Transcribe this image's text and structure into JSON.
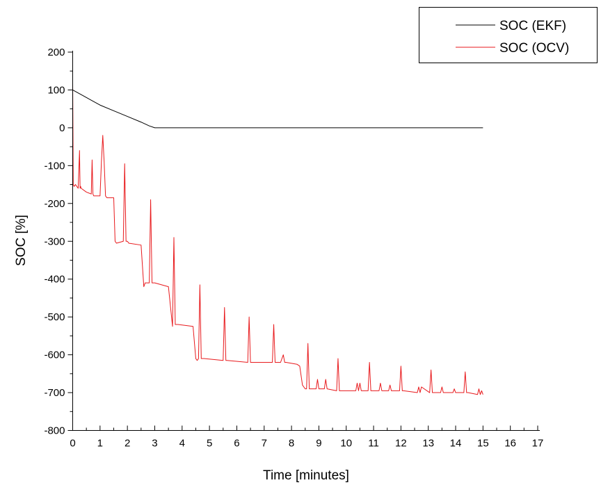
{
  "chart_data": {
    "type": "line",
    "xlabel": "Time [minutes]",
    "ylabel": "SOC [%]",
    "xlim": [
      0,
      17
    ],
    "ylim": [
      -800,
      200
    ],
    "x_ticks": [
      "0",
      "1",
      "2",
      "3",
      "4",
      "5",
      "6",
      "7",
      "8",
      "9",
      "10",
      "11",
      "12",
      "13",
      "14",
      "15",
      "16",
      "17"
    ],
    "y_ticks": [
      "200",
      "100",
      "0",
      "-100",
      "-200",
      "-300",
      "-400",
      "-500",
      "-600",
      "-700",
      "-800"
    ],
    "grid": false,
    "legend_position": "top-right",
    "series": [
      {
        "name": "SOC (EKF)",
        "color": "#000000",
        "x": [
          0,
          0.5,
          1.0,
          1.5,
          2.0,
          2.5,
          2.8,
          3.0,
          3.2,
          5,
          10,
          15
        ],
        "y": [
          100,
          80,
          60,
          45,
          30,
          15,
          5,
          0,
          0,
          0,
          0,
          0
        ]
      },
      {
        "name": "SOC (OCV)",
        "color": "#e8191c",
        "x": [
          0,
          0.02,
          0.05,
          0.1,
          0.2,
          0.25,
          0.27,
          0.29,
          0.31,
          0.5,
          0.68,
          0.71,
          0.74,
          0.77,
          1.0,
          1.05,
          1.1,
          1.15,
          1.2,
          1.25,
          1.5,
          1.55,
          1.6,
          1.85,
          1.9,
          1.95,
          2.0,
          2.05,
          2.5,
          2.6,
          2.65,
          2.8,
          2.85,
          2.9,
          2.95,
          3.0,
          3.5,
          3.65,
          3.7,
          3.75,
          3.8,
          3.85,
          4.4,
          4.5,
          4.55,
          4.6,
          4.65,
          4.7,
          4.75,
          4.8,
          5.5,
          5.55,
          5.6,
          5.65,
          6.4,
          6.45,
          6.5,
          6.55,
          7.3,
          7.35,
          7.4,
          7.45,
          7.6,
          7.7,
          7.75,
          7.8,
          8.2,
          8.3,
          8.4,
          8.5,
          8.55,
          8.6,
          8.65,
          8.9,
          8.95,
          9.0,
          9.1,
          9.2,
          9.25,
          9.3,
          9.65,
          9.7,
          9.75,
          9.8,
          10.35,
          10.4,
          10.45,
          10.5,
          10.55,
          10.8,
          10.85,
          10.9,
          10.95,
          11.2,
          11.25,
          11.3,
          11.55,
          11.6,
          11.65,
          11.95,
          12.0,
          12.05,
          12.1,
          12.6,
          12.65,
          12.7,
          12.75,
          13.05,
          13.1,
          13.15,
          13.2,
          13.45,
          13.5,
          13.55,
          13.9,
          13.95,
          14.0,
          14.3,
          14.35,
          14.4,
          14.45,
          14.8,
          14.85,
          14.9,
          14.95,
          15.0
        ],
        "y": [
          120,
          -150,
          -155,
          -150,
          -160,
          -60,
          -160,
          -155,
          -160,
          -170,
          -175,
          -85,
          -175,
          -180,
          -180,
          -90,
          -20,
          -90,
          -180,
          -185,
          -185,
          -300,
          -305,
          -300,
          -95,
          -300,
          -300,
          -305,
          -310,
          -420,
          -410,
          -410,
          -190,
          -410,
          -410,
          -410,
          -420,
          -525,
          -290,
          -520,
          -520,
          -520,
          -525,
          -610,
          -615,
          -610,
          -415,
          -610,
          -610,
          -610,
          -615,
          -475,
          -615,
          -615,
          -620,
          -500,
          -620,
          -620,
          -620,
          -520,
          -620,
          -620,
          -620,
          -600,
          -620,
          -620,
          -625,
          -630,
          -680,
          -690,
          -690,
          -570,
          -690,
          -690,
          -665,
          -690,
          -690,
          -690,
          -665,
          -690,
          -695,
          -610,
          -695,
          -695,
          -695,
          -675,
          -695,
          -675,
          -695,
          -695,
          -620,
          -695,
          -695,
          -695,
          -675,
          -695,
          -695,
          -680,
          -695,
          -695,
          -630,
          -695,
          -695,
          -700,
          -685,
          -700,
          -685,
          -700,
          -640,
          -700,
          -700,
          -700,
          -685,
          -700,
          -700,
          -690,
          -700,
          -700,
          -645,
          -700,
          -700,
          -705,
          -690,
          -705,
          -695,
          -705
        ]
      }
    ]
  }
}
